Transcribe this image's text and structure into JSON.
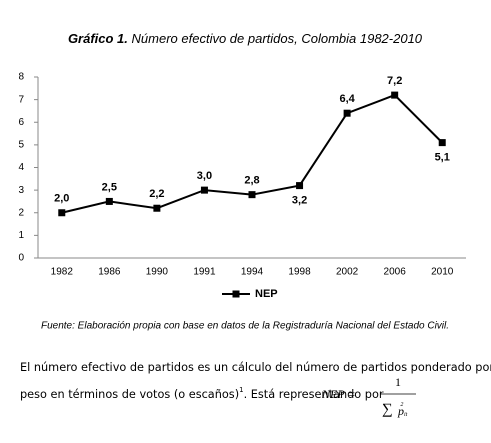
{
  "chart_data": {
    "type": "line",
    "title_number": "Gráfico 1.",
    "title": "Número efectivo de partidos, Colombia 1982-2010",
    "categories": [
      "1982",
      "1986",
      "1990",
      "1991",
      "1994",
      "1998",
      "2002",
      "2006",
      "2010"
    ],
    "series": [
      {
        "name": "NEP",
        "color": "#000000",
        "values": [
          2.0,
          2.5,
          2.2,
          3.0,
          2.8,
          3.2,
          6.4,
          7.2,
          5.1
        ],
        "value_labels": [
          "2,0",
          "2,5",
          "2,2",
          "3,0",
          "2,8",
          "3,2",
          "6,4",
          "7,2",
          "5,1"
        ]
      }
    ],
    "ylim": [
      0,
      8
    ],
    "yticks": [
      0,
      1,
      2,
      3,
      4,
      5,
      6,
      7,
      8
    ],
    "grid": false
  },
  "source": "Fuente: Elaboración propia con base en datos de la Registraduría Nacional del Estado Civil.",
  "paragraph": {
    "line1": "El número efectivo de partidos es un cálculo del  número de partidos ponderado por su",
    "line2": "peso en términos de votos (o escaños)",
    "footnote": "1",
    "line2_end": ". Está representando por",
    "formula": {
      "lhs": "NEP =",
      "numerator": "1",
      "sum": "∑",
      "var": "p",
      "sub": "it",
      "sup": "2"
    }
  }
}
